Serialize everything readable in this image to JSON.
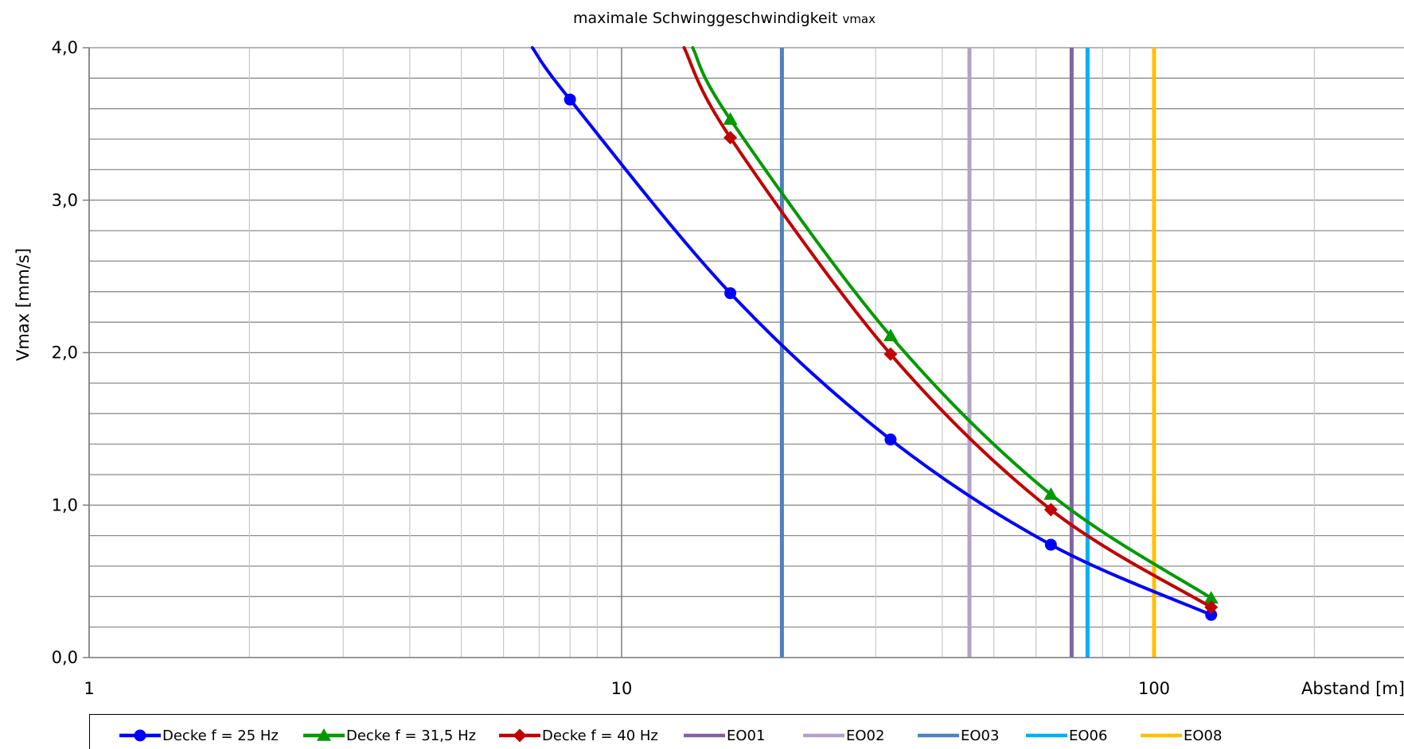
{
  "chart_data": {
    "type": "line",
    "title": "maximale Schwinggeschwindigkeit",
    "title_subscript": "vmax",
    "ylabel": "Vmax [mm/s]",
    "xlabel": "Abstand [m]",
    "x_scale": "log",
    "xlim": [
      1,
      200
    ],
    "ylim": [
      0,
      4
    ],
    "x_ticks": [
      {
        "value": 1,
        "label": "1"
      },
      {
        "value": 10,
        "label": "10"
      },
      {
        "value": 100,
        "label": "100"
      }
    ],
    "y_ticks": [
      {
        "value": 0,
        "label": "0,0"
      },
      {
        "value": 1,
        "label": "1,0"
      },
      {
        "value": 2,
        "label": "2,0"
      },
      {
        "value": 3,
        "label": "3,0"
      },
      {
        "value": 4,
        "label": "4,0"
      }
    ],
    "y_minor_step": 0.2,
    "grid": true,
    "legend_position": "bottom",
    "series": [
      {
        "name": "Decke f = 25 Hz",
        "color": "#0000ff",
        "marker": "circle",
        "points": [
          [
            8,
            3.66
          ],
          [
            16,
            2.39
          ],
          [
            32,
            1.43
          ],
          [
            64,
            0.74
          ],
          [
            128,
            0.28
          ]
        ],
        "curve_start": [
          6.8,
          4.0
        ]
      },
      {
        "name": "Decke f = 31,5 Hz",
        "color": "#009900",
        "marker": "triangle",
        "points": [
          [
            16,
            3.53
          ],
          [
            32,
            2.11
          ],
          [
            64,
            1.07
          ],
          [
            128,
            0.39
          ]
        ],
        "curve_start": [
          13.6,
          4.0
        ]
      },
      {
        "name": "Decke f = 40 Hz",
        "color": "#c00000",
        "marker": "diamond",
        "points": [
          [
            16,
            3.41
          ],
          [
            32,
            1.99
          ],
          [
            64,
            0.97
          ],
          [
            128,
            0.33
          ]
        ],
        "curve_start": [
          13.1,
          4.0
        ]
      }
    ],
    "vertical_lines": [
      {
        "name": "EO01",
        "x": 70,
        "color": "#8064a2"
      },
      {
        "name": "EO02",
        "x": 45,
        "color": "#b3a2c7"
      },
      {
        "name": "EO03",
        "x": 20,
        "color": "#4f81bd"
      },
      {
        "name": "EO06",
        "x": 75,
        "color": "#00b0f0"
      },
      {
        "name": "EO08",
        "x": 100,
        "color": "#ffc000"
      }
    ]
  },
  "legend": [
    {
      "label": "Decke f = 25 Hz",
      "color": "#0000ff",
      "marker": "circle"
    },
    {
      "label": "Decke f = 31,5 Hz",
      "color": "#009900",
      "marker": "triangle"
    },
    {
      "label": "Decke f = 40 Hz",
      "color": "#c00000",
      "marker": "diamond"
    },
    {
      "label": "EO01",
      "color": "#8064a2",
      "marker": "none"
    },
    {
      "label": "EO02",
      "color": "#b3a2c7",
      "marker": "none"
    },
    {
      "label": "EO03",
      "color": "#4f81bd",
      "marker": "none"
    },
    {
      "label": "EO06",
      "color": "#00b0f0",
      "marker": "none"
    },
    {
      "label": "EO08",
      "color": "#ffc000",
      "marker": "none"
    }
  ]
}
